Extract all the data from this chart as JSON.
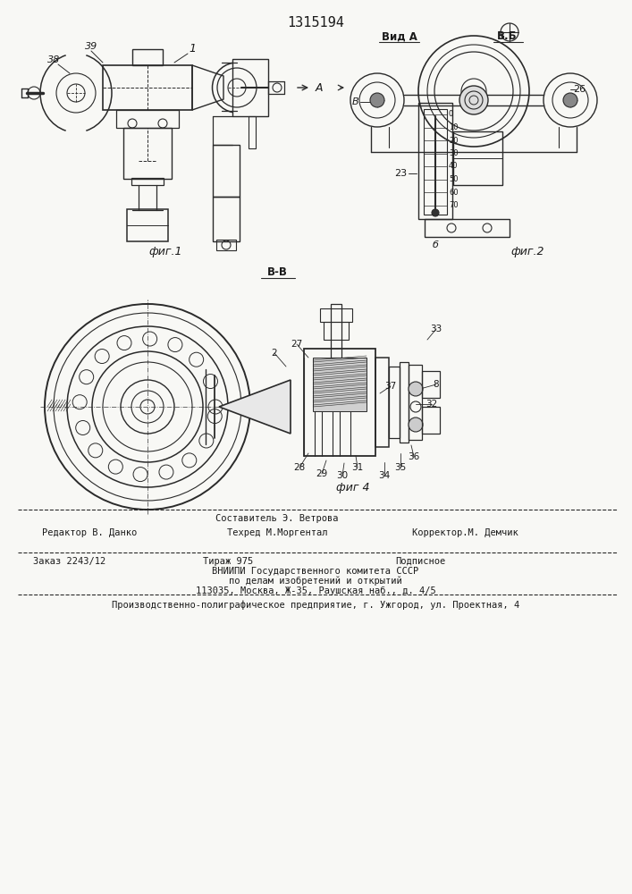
{
  "title": "1315194",
  "bg_color": "#f8f8f5",
  "line_color": "#2a2a2a",
  "text_color": "#1a1a1a",
  "fig1_label": "фиг.1",
  "fig2_label": "фиг.2",
  "fig4_label": "фиг 4",
  "view_a_label": "Вид А",
  "view_bb_label": "В-В",
  "footer_line0": "Составитель Э. Ветрова",
  "footer_line1_col1": "Редактор В. Данко",
  "footer_line1_col2": "Техред М.Моргентал",
  "footer_line1_col3": "Корректор.М. Демчик",
  "footer_line2_col1": "Заказ 2243/12",
  "footer_line2_col2": "Тираж 975",
  "footer_line2_col3": "Подписное",
  "footer_line3": "ВНИИПИ Государственного комитета СССР",
  "footer_line4": "по делам изобретений и открытий",
  "footer_line5": "113035, Москва, Ж-35, Раушская наб., д. 4/5",
  "footer_last": "Производственно-полиграфическое предприятие, г. Ужгород, ул. Проектная, 4"
}
